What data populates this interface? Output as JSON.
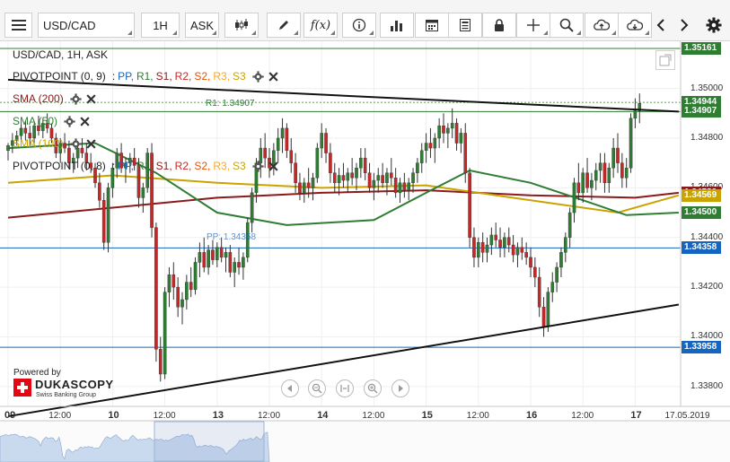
{
  "toolbar": {
    "instrument": "USD/CAD",
    "period": "1H",
    "side": "ASK"
  },
  "chart_header": {
    "symbol_line": "USD/CAD, 1H, ASK"
  },
  "legend": {
    "pivot1_name": "PIVOTPOINT (0, 9)",
    "pivot2_name": "PIVOTPOINT (0, 8)",
    "pp": "PP,",
    "r1": "R1,",
    "s1": "S1,",
    "r2": "R2,",
    "s2": "S2,",
    "r3": "R3,",
    "s3": "S3",
    "sep": ":",
    "sma200": "SMA (200)",
    "sma50": "SMA (50)",
    "sma100": "SMA (100)"
  },
  "annotations": {
    "r1_label": "R1: 1.34907",
    "pp_label": "PP: 1.34358"
  },
  "branding": {
    "powered_by": "Powered by",
    "name": "DUKASCOPY",
    "tagline": "Swiss Banking Group"
  },
  "colors": {
    "sma200": "#8b1a1a",
    "sma50": "#2e7d32",
    "sma100": "#c9a400",
    "pp": "#1565c0",
    "r1": "#2e7d32",
    "s1": "#8b1a1a",
    "r2": "#c62828",
    "s2": "#e65100",
    "r3": "#f9a825",
    "s3": "#c9a400",
    "bull": "#2e7d32",
    "bear": "#c62828",
    "current_price": "#2e7d32"
  },
  "chart_data": {
    "type": "candlestick",
    "instrument": "USD/CAD",
    "timeframe": "1H",
    "price_ticks": [
      1.35,
      1.348,
      1.346,
      1.344,
      1.342,
      1.34,
      1.338
    ],
    "price_tick_labels": [
      "1.35000",
      "1.34800",
      "1.34600",
      "1.34400",
      "1.34200",
      "1.34000",
      "1.33800"
    ],
    "ylim": [
      1.3372,
      1.3519
    ],
    "price_tags": [
      {
        "label": "1.35161",
        "value": 1.35161,
        "color": "#2e7d32"
      },
      {
        "label": "1.34944",
        "value": 1.34944,
        "color": "#2e7d32"
      },
      {
        "label": "1.34907",
        "value": 1.34907,
        "color": "#2e7d32"
      },
      {
        "label": "1.34580",
        "value": 1.3458,
        "color": "#8b1a1a"
      },
      {
        "label": "1.34569",
        "value": 1.34569,
        "color": "#c9a400"
      },
      {
        "label": "1.34500",
        "value": 1.345,
        "color": "#2e7d32"
      },
      {
        "label": "1.34358",
        "value": 1.34358,
        "color": "#1565c0"
      },
      {
        "label": "1.33958",
        "value": 1.33958,
        "color": "#1565c0"
      }
    ],
    "levels": [
      {
        "name": "R1",
        "value": 1.34907,
        "color": "#2e7d32"
      },
      {
        "name": "PP",
        "value": 1.34358,
        "color": "#1565c0"
      },
      {
        "name": "S1",
        "value": 1.33958,
        "color": "#1565c0"
      },
      {
        "name": "top",
        "value": 1.35161,
        "color": "#2e7d32"
      }
    ],
    "time_labels": [
      {
        "text": "09",
        "hour": 0,
        "day": true
      },
      {
        "text": "12:00",
        "hour": 12,
        "day": false
      },
      {
        "text": "10",
        "hour": 24,
        "day": true
      },
      {
        "text": "12:00",
        "hour": 36,
        "day": false
      },
      {
        "text": "13",
        "hour": 48,
        "day": true
      },
      {
        "text": "12:00",
        "hour": 60,
        "day": false
      },
      {
        "text": "14",
        "hour": 72,
        "day": true
      },
      {
        "text": "12:00",
        "hour": 84,
        "day": false
      },
      {
        "text": "15",
        "hour": 96,
        "day": true
      },
      {
        "text": "12:00",
        "hour": 108,
        "day": false
      },
      {
        "text": "16",
        "hour": 120,
        "day": true
      },
      {
        "text": "12:00",
        "hour": 132,
        "day": false
      },
      {
        "text": "17",
        "hour": 144,
        "day": true
      },
      {
        "text": "17.05.2019",
        "hour": 153.5,
        "day": false
      }
    ],
    "trendlines": [
      {
        "name": "upper",
        "from": [
          0,
          1.35035
        ],
        "to": [
          154,
          1.34907
        ]
      },
      {
        "name": "lower",
        "from": [
          0,
          1.3368
        ],
        "to": [
          154,
          1.3413
        ]
      }
    ],
    "series": [
      {
        "name": "SMA (200)",
        "color": "#8b1a1a",
        "points": [
          [
            0,
            1.3448
          ],
          [
            24,
            1.3452
          ],
          [
            48,
            1.3456
          ],
          [
            72,
            1.3458
          ],
          [
            96,
            1.3459
          ],
          [
            120,
            1.3457
          ],
          [
            144,
            1.3456
          ],
          [
            154,
            1.3458
          ]
        ]
      },
      {
        "name": "SMA (100)",
        "color": "#c9a400",
        "points": [
          [
            0,
            1.3462
          ],
          [
            24,
            1.3465
          ],
          [
            48,
            1.3462
          ],
          [
            72,
            1.346
          ],
          [
            96,
            1.3461
          ],
          [
            120,
            1.3455
          ],
          [
            140,
            1.345
          ],
          [
            154,
            1.3457
          ]
        ]
      },
      {
        "name": "SMA (50)",
        "color": "#2e7d32",
        "points": [
          [
            0,
            1.3476
          ],
          [
            20,
            1.3478
          ],
          [
            34,
            1.3466
          ],
          [
            48,
            1.345
          ],
          [
            64,
            1.3445
          ],
          [
            84,
            1.3447
          ],
          [
            96,
            1.3458
          ],
          [
            106,
            1.3467
          ],
          [
            120,
            1.3462
          ],
          [
            132,
            1.3455
          ],
          [
            142,
            1.3449
          ],
          [
            154,
            1.345
          ]
        ]
      }
    ],
    "candles": [
      [
        1.3475,
        1.3478,
        1.3471,
        1.3477
      ],
      [
        1.3477,
        1.3482,
        1.3474,
        1.3479
      ],
      [
        1.3479,
        1.3483,
        1.3477,
        1.3481
      ],
      [
        1.3481,
        1.3486,
        1.3479,
        1.3484
      ],
      [
        1.3484,
        1.3487,
        1.3479,
        1.3482
      ],
      [
        1.3482,
        1.3485,
        1.3477,
        1.348
      ],
      [
        1.348,
        1.3486,
        1.3478,
        1.3485
      ],
      [
        1.3485,
        1.3489,
        1.3481,
        1.3483
      ],
      [
        1.3483,
        1.3488,
        1.348,
        1.3486
      ],
      [
        1.3486,
        1.349,
        1.3482,
        1.3484
      ],
      [
        1.3484,
        1.3486,
        1.3478,
        1.348
      ],
      [
        1.348,
        1.3482,
        1.3472,
        1.3474
      ],
      [
        1.3474,
        1.348,
        1.347,
        1.3478
      ],
      [
        1.3478,
        1.3482,
        1.3474,
        1.3476
      ],
      [
        1.3476,
        1.3479,
        1.3468,
        1.347
      ],
      [
        1.347,
        1.3474,
        1.3466,
        1.3472
      ],
      [
        1.3472,
        1.3478,
        1.3468,
        1.3476
      ],
      [
        1.3476,
        1.348,
        1.3472,
        1.3474
      ],
      [
        1.3474,
        1.3478,
        1.3467,
        1.347
      ],
      [
        1.347,
        1.3474,
        1.3466,
        1.3468
      ],
      [
        1.3468,
        1.347,
        1.346,
        1.3462
      ],
      [
        1.3462,
        1.3466,
        1.3452,
        1.3455
      ],
      [
        1.3455,
        1.3458,
        1.3435,
        1.3438
      ],
      [
        1.3438,
        1.3462,
        1.3434,
        1.346
      ],
      [
        1.346,
        1.347,
        1.3456,
        1.3468
      ],
      [
        1.3468,
        1.3476,
        1.3464,
        1.3474
      ],
      [
        1.3474,
        1.3478,
        1.3466,
        1.3468
      ],
      [
        1.3468,
        1.3472,
        1.3462,
        1.347
      ],
      [
        1.347,
        1.3474,
        1.3466,
        1.3472
      ],
      [
        1.3472,
        1.3476,
        1.3467,
        1.3469
      ],
      [
        1.3469,
        1.3472,
        1.3452,
        1.3456
      ],
      [
        1.3456,
        1.3462,
        1.345,
        1.346
      ],
      [
        1.346,
        1.3476,
        1.3458,
        1.3474
      ],
      [
        1.3474,
        1.3478,
        1.344,
        1.3444
      ],
      [
        1.3444,
        1.3446,
        1.339,
        1.3395
      ],
      [
        1.3395,
        1.34,
        1.3382,
        1.3385
      ],
      [
        1.3385,
        1.342,
        1.3383,
        1.3418
      ],
      [
        1.3418,
        1.3428,
        1.3412,
        1.3425
      ],
      [
        1.3425,
        1.343,
        1.3415,
        1.342
      ],
      [
        1.342,
        1.3424,
        1.3408,
        1.3412
      ],
      [
        1.3412,
        1.3418,
        1.3405,
        1.3415
      ],
      [
        1.3415,
        1.3425,
        1.3411,
        1.3422
      ],
      [
        1.3422,
        1.3428,
        1.3416,
        1.3419
      ],
      [
        1.3419,
        1.3432,
        1.3417,
        1.343
      ],
      [
        1.343,
        1.3438,
        1.3424,
        1.3434
      ],
      [
        1.3434,
        1.344,
        1.3426,
        1.3428
      ],
      [
        1.3428,
        1.3437,
        1.3425,
        1.3435
      ],
      [
        1.3435,
        1.3439,
        1.3429,
        1.3431
      ],
      [
        1.3431,
        1.3438,
        1.3428,
        1.3436
      ],
      [
        1.3436,
        1.344,
        1.343,
        1.3432
      ],
      [
        1.3432,
        1.3436,
        1.3426,
        1.3434
      ],
      [
        1.3434,
        1.3437,
        1.3424,
        1.3426
      ],
      [
        1.3426,
        1.3432,
        1.342,
        1.343
      ],
      [
        1.343,
        1.3436,
        1.3425,
        1.3428
      ],
      [
        1.3428,
        1.3434,
        1.3423,
        1.3432
      ],
      [
        1.3432,
        1.3448,
        1.343,
        1.3446
      ],
      [
        1.3446,
        1.346,
        1.3442,
        1.3458
      ],
      [
        1.3458,
        1.3472,
        1.3454,
        1.347
      ],
      [
        1.347,
        1.348,
        1.3464,
        1.3476
      ],
      [
        1.3476,
        1.3482,
        1.3468,
        1.3472
      ],
      [
        1.3472,
        1.3476,
        1.3464,
        1.3468
      ],
      [
        1.3468,
        1.3478,
        1.3465,
        1.3475
      ],
      [
        1.3475,
        1.3484,
        1.347,
        1.348
      ],
      [
        1.348,
        1.3488,
        1.3474,
        1.3484
      ],
      [
        1.3484,
        1.3486,
        1.3472,
        1.3475
      ],
      [
        1.3475,
        1.348,
        1.3466,
        1.347
      ],
      [
        1.347,
        1.3474,
        1.3458,
        1.3462
      ],
      [
        1.3462,
        1.3466,
        1.3455,
        1.3458
      ],
      [
        1.3458,
        1.3464,
        1.3454,
        1.3462
      ],
      [
        1.3462,
        1.3468,
        1.3456,
        1.346
      ],
      [
        1.346,
        1.3466,
        1.3455,
        1.3464
      ],
      [
        1.3464,
        1.3478,
        1.3462,
        1.3476
      ],
      [
        1.3476,
        1.3486,
        1.3472,
        1.3482
      ],
      [
        1.3482,
        1.3484,
        1.347,
        1.3474
      ],
      [
        1.3474,
        1.3478,
        1.3462,
        1.3466
      ],
      [
        1.3466,
        1.347,
        1.3458,
        1.3462
      ],
      [
        1.3462,
        1.3468,
        1.3457,
        1.3465
      ],
      [
        1.3465,
        1.347,
        1.346,
        1.3463
      ],
      [
        1.3463,
        1.3468,
        1.3458,
        1.3466
      ],
      [
        1.3466,
        1.3472,
        1.3461,
        1.3464
      ],
      [
        1.3464,
        1.347,
        1.3459,
        1.3468
      ],
      [
        1.3468,
        1.3476,
        1.3464,
        1.3472
      ],
      [
        1.3472,
        1.3476,
        1.3463,
        1.3466
      ],
      [
        1.3466,
        1.347,
        1.3458,
        1.346
      ],
      [
        1.346,
        1.3466,
        1.3455,
        1.3463
      ],
      [
        1.3463,
        1.3468,
        1.3458,
        1.3465
      ],
      [
        1.3465,
        1.347,
        1.346,
        1.3462
      ],
      [
        1.3462,
        1.3468,
        1.3457,
        1.3466
      ],
      [
        1.3466,
        1.3472,
        1.3461,
        1.3464
      ],
      [
        1.3464,
        1.3468,
        1.3456,
        1.3458
      ],
      [
        1.3458,
        1.3464,
        1.3454,
        1.3462
      ],
      [
        1.3462,
        1.3466,
        1.3456,
        1.3459
      ],
      [
        1.3459,
        1.3464,
        1.3455,
        1.3462
      ],
      [
        1.3462,
        1.3468,
        1.3458,
        1.3466
      ],
      [
        1.3466,
        1.3472,
        1.3462,
        1.347
      ],
      [
        1.347,
        1.3478,
        1.3466,
        1.3475
      ],
      [
        1.3475,
        1.3482,
        1.347,
        1.3478
      ],
      [
        1.3478,
        1.3484,
        1.3472,
        1.3476
      ],
      [
        1.3476,
        1.3482,
        1.347,
        1.348
      ],
      [
        1.348,
        1.3488,
        1.3476,
        1.3485
      ],
      [
        1.3485,
        1.349,
        1.3478,
        1.3482
      ],
      [
        1.3482,
        1.3486,
        1.3476,
        1.3484
      ],
      [
        1.3484,
        1.3492,
        1.348,
        1.3486
      ],
      [
        1.3486,
        1.3488,
        1.3475,
        1.3478
      ],
      [
        1.3478,
        1.3484,
        1.3474,
        1.3482
      ],
      [
        1.3482,
        1.3486,
        1.3462,
        1.3466
      ],
      [
        1.3466,
        1.3468,
        1.3436,
        1.344
      ],
      [
        1.344,
        1.3444,
        1.3428,
        1.3432
      ],
      [
        1.3432,
        1.344,
        1.3428,
        1.3438
      ],
      [
        1.3438,
        1.3442,
        1.343,
        1.3434
      ],
      [
        1.3434,
        1.344,
        1.343,
        1.3437
      ],
      [
        1.3437,
        1.3444,
        1.3433,
        1.3441
      ],
      [
        1.3441,
        1.3446,
        1.3436,
        1.3439
      ],
      [
        1.3439,
        1.3444,
        1.3432,
        1.3436
      ],
      [
        1.3436,
        1.3442,
        1.3432,
        1.344
      ],
      [
        1.344,
        1.3444,
        1.3434,
        1.3437
      ],
      [
        1.3437,
        1.3441,
        1.343,
        1.3433
      ],
      [
        1.3433,
        1.3438,
        1.3428,
        1.3436
      ],
      [
        1.3436,
        1.344,
        1.3431,
        1.3434
      ],
      [
        1.3434,
        1.3438,
        1.3429,
        1.3432
      ],
      [
        1.3432,
        1.3436,
        1.3424,
        1.3428
      ],
      [
        1.3428,
        1.3432,
        1.342,
        1.3424
      ],
      [
        1.3424,
        1.3428,
        1.3408,
        1.3412
      ],
      [
        1.3412,
        1.3416,
        1.34,
        1.3404
      ],
      [
        1.3404,
        1.342,
        1.3402,
        1.3418
      ],
      [
        1.3418,
        1.3426,
        1.3414,
        1.3422
      ],
      [
        1.3422,
        1.343,
        1.3418,
        1.3428
      ],
      [
        1.3428,
        1.3436,
        1.3424,
        1.3434
      ],
      [
        1.3434,
        1.3442,
        1.343,
        1.344
      ],
      [
        1.344,
        1.3452,
        1.3436,
        1.345
      ],
      [
        1.345,
        1.3464,
        1.3446,
        1.3462
      ],
      [
        1.3462,
        1.347,
        1.3455,
        1.3458
      ],
      [
        1.3458,
        1.3468,
        1.3454,
        1.3466
      ],
      [
        1.3466,
        1.3472,
        1.3458,
        1.346
      ],
      [
        1.346,
        1.3466,
        1.3455,
        1.3463
      ],
      [
        1.3463,
        1.347,
        1.3459,
        1.3467
      ],
      [
        1.3467,
        1.3474,
        1.3462,
        1.347
      ],
      [
        1.347,
        1.3474,
        1.3458,
        1.3462
      ],
      [
        1.3462,
        1.347,
        1.3458,
        1.3468
      ],
      [
        1.3468,
        1.348,
        1.3464,
        1.3476
      ],
      [
        1.3476,
        1.3482,
        1.3466,
        1.347
      ],
      [
        1.347,
        1.3474,
        1.346,
        1.3464
      ],
      [
        1.3464,
        1.3472,
        1.346,
        1.3468
      ],
      [
        1.3468,
        1.349,
        1.3466,
        1.3488
      ],
      [
        1.3488,
        1.3496,
        1.3484,
        1.3491
      ],
      [
        1.3491,
        1.3498,
        1.3486,
        1.3494
      ]
    ]
  }
}
